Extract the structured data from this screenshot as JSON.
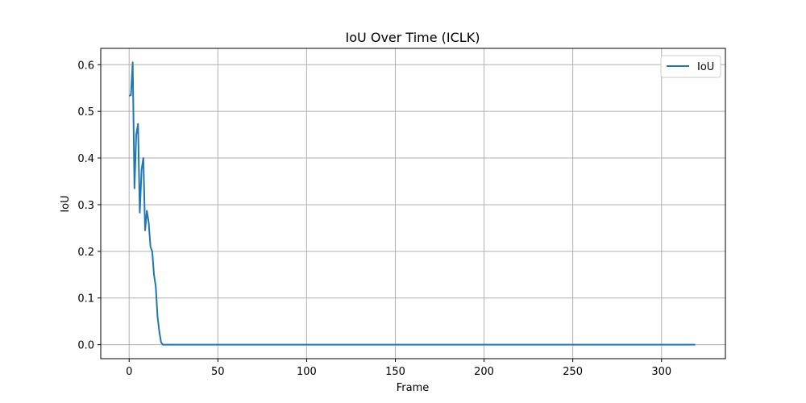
{
  "chart_data": {
    "type": "line",
    "title": "IoU Over Time (ICLK)",
    "xlabel": "Frame",
    "ylabel": "IoU",
    "xlim": [
      -16,
      336
    ],
    "ylim": [
      -0.03,
      0.635
    ],
    "xticks": [
      0,
      50,
      100,
      150,
      200,
      250,
      300
    ],
    "xtick_labels": [
      "0",
      "50",
      "100",
      "150",
      "200",
      "250",
      "300"
    ],
    "yticks": [
      0.0,
      0.1,
      0.2,
      0.3,
      0.4,
      0.5,
      0.6
    ],
    "ytick_labels": [
      "0.0",
      "0.1",
      "0.2",
      "0.3",
      "0.4",
      "0.5",
      "0.6"
    ],
    "grid": true,
    "legend_position": "top-right",
    "series": [
      {
        "name": "IoU",
        "color": "#1f77b4",
        "x": [
          0,
          1,
          2,
          3,
          4,
          5,
          6,
          7,
          8,
          9,
          10,
          11,
          12,
          13,
          14,
          15,
          16,
          17,
          18,
          19,
          20,
          25,
          50,
          100,
          150,
          200,
          250,
          300,
          319
        ],
        "y": [
          0.533,
          0.535,
          0.605,
          0.335,
          0.45,
          0.473,
          0.283,
          0.375,
          0.4,
          0.245,
          0.287,
          0.262,
          0.21,
          0.2,
          0.15,
          0.125,
          0.06,
          0.028,
          0.005,
          0.0,
          0.0,
          0.0,
          0.0,
          0.0,
          0.0,
          0.0,
          0.0,
          0.0,
          0.0
        ]
      }
    ]
  }
}
